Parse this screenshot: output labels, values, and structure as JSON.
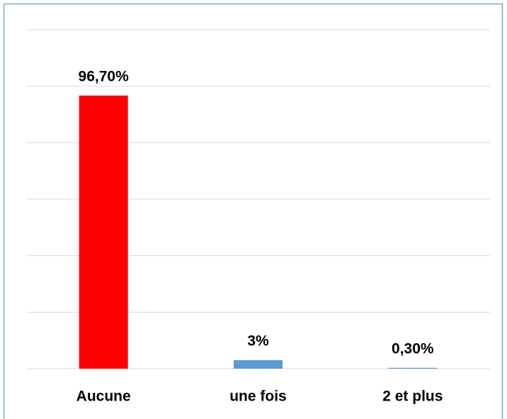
{
  "chart_data": {
    "type": "bar",
    "categories": [
      "Aucune",
      "une fois",
      "2 et plus"
    ],
    "values": [
      96.7,
      3,
      0.3
    ],
    "value_labels": [
      "96,70%",
      "3%",
      "0,30%"
    ],
    "colors": [
      "#ff0000",
      "#5b9bd5",
      "#5b9bd5"
    ],
    "ylim": [
      0,
      120
    ],
    "yticks": [
      0,
      20,
      40,
      60,
      80,
      100,
      120
    ],
    "grid": true
  }
}
